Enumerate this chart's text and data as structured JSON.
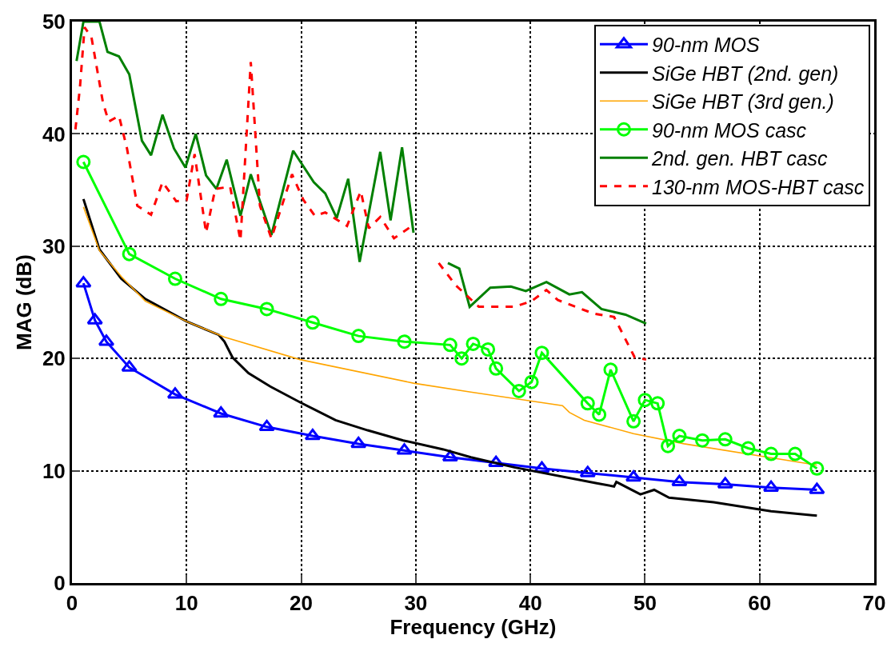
{
  "chart_data": {
    "type": "line",
    "xlabel": "Frequency (GHz)",
    "ylabel": "MAG (dB)",
    "xlim": [
      0,
      70
    ],
    "ylim": [
      0,
      50
    ],
    "xticks": [
      0,
      10,
      20,
      30,
      40,
      50,
      60,
      70
    ],
    "yticks": [
      0,
      10,
      20,
      30,
      40,
      50
    ],
    "grid": true,
    "legend": "top right",
    "series": [
      {
        "name": "90-nm MOS",
        "color": "#0000ff",
        "marker": "triangle",
        "line_style": "solid",
        "x": [
          1,
          2,
          3,
          5,
          9,
          13,
          17,
          21,
          25,
          29,
          33,
          37,
          41,
          45,
          49,
          53,
          57,
          61,
          65
        ],
        "values": [
          26.7,
          23.4,
          21.5,
          19.2,
          16.8,
          15.1,
          13.9,
          13.1,
          12.4,
          11.8,
          11.2,
          10.7,
          10.2,
          9.8,
          9.4,
          9.0,
          8.8,
          8.5,
          8.3
        ]
      },
      {
        "name": "SiGe HBT (2nd. gen)",
        "color": "#000000",
        "marker": "none",
        "line_style": "solid",
        "x": [
          1,
          2.4,
          4.3,
          6.4,
          10,
          12.8,
          13.3,
          14,
          15.4,
          17.3,
          19.9,
          23,
          25.8,
          28.9,
          32.4,
          34.8,
          38.6,
          45.7,
          47.3,
          47.5,
          49.6,
          50.8,
          52.1,
          56,
          61,
          65
        ],
        "values": [
          34.2,
          29.7,
          27.1,
          25.3,
          23.3,
          22.1,
          21.5,
          20.1,
          18.7,
          17.5,
          16.1,
          14.5,
          13.6,
          12.7,
          11.9,
          11.2,
          10.3,
          8.9,
          8.6,
          9.0,
          7.9,
          8.3,
          7.6,
          7.2,
          6.4,
          6.0
        ]
      },
      {
        "name": "SiGe HBT (3rd gen.)",
        "color": "#ffa500",
        "marker": "none",
        "line_style": "solid",
        "x": [
          1,
          2.4,
          4.3,
          6.4,
          10,
          13.3,
          19.9,
          29.8,
          34.8,
          40.1,
          42.8,
          43.4,
          44.7,
          49,
          53.4,
          65
        ],
        "values": [
          33.5,
          29.6,
          27.3,
          25.1,
          23.3,
          21.9,
          19.9,
          17.8,
          17.0,
          16.2,
          15.8,
          15.2,
          14.5,
          13.3,
          12.4,
          10.5
        ]
      },
      {
        "name": "90-nm MOS casc",
        "color": "#00ff00",
        "marker": "circle",
        "line_style": "solid",
        "x": [
          1,
          5,
          9,
          13,
          17,
          21,
          25,
          29,
          33,
          34,
          35,
          36.3,
          37,
          39,
          40.1,
          41,
          45,
          46,
          47,
          49,
          50,
          51.1,
          52,
          53,
          55,
          57,
          59,
          61,
          63.1,
          65
        ],
        "values": [
          37.5,
          29.3,
          27.1,
          25.3,
          24.4,
          23.2,
          22.0,
          21.5,
          21.2,
          20.0,
          21.3,
          20.8,
          19.1,
          17.1,
          17.9,
          20.5,
          16.0,
          15.0,
          19.0,
          14.4,
          16.3,
          16.0,
          12.2,
          13.1,
          12.7,
          12.8,
          12.0,
          11.5,
          11.5,
          10.2
        ]
      },
      {
        "name": "2nd. gen. HBT casc",
        "color": "#008000",
        "marker": "none",
        "line_style": "solid",
        "x": [
          0.4,
          1,
          2.4,
          3.1,
          4.1,
          5,
          6.1,
          6.9,
          7.9,
          8.9,
          9.9,
          10.8,
          11.7,
          12.6,
          13.5,
          14.7,
          15.6,
          17.4,
          19.3,
          21.1,
          22.1,
          23.1,
          24.1,
          25.1,
          26.9,
          27.8,
          28.8,
          29.8,
          31,
          32.8,
          33.8,
          34.7,
          36.5,
          38.3,
          39.6,
          41.4,
          43.4,
          44.5,
          46.2,
          48.3,
          50.1
        ],
        "values": [
          46.5,
          50,
          50,
          47.3,
          46.9,
          45.3,
          39.4,
          38.1,
          41.7,
          38.7,
          37,
          40,
          36.3,
          35.1,
          37.7,
          32.7,
          36.4,
          31,
          38.5,
          35.7,
          34.7,
          32.5,
          36,
          28.6,
          38.4,
          32.3,
          38.8,
          31.2,
          null,
          28.5,
          28,
          24.6,
          26.3,
          26.4,
          26,
          26.8,
          25.7,
          25.9,
          24.4,
          23.9,
          23.1
        ]
      },
      {
        "name": "130-nm MOS-HBT casc",
        "color": "#ff0000",
        "marker": "none",
        "line_style": "dashed",
        "x": [
          0.3,
          0.7,
          1.1,
          1.7,
          2.7,
          3.2,
          4.1,
          4.8,
          5.7,
          6.9,
          7.9,
          9.1,
          10,
          10.7,
          11.7,
          12.5,
          13.8,
          14.7,
          15.6,
          16.4,
          17.4,
          19.2,
          20.2,
          21.2,
          22.1,
          24,
          25.2,
          25.9,
          26.9,
          28.1,
          29.8,
          31,
          32,
          33.5,
          35.5,
          38.6,
          40.1,
          41.4,
          42.4,
          45.5,
          47.3,
          49.1,
          50.1
        ],
        "values": [
          40.4,
          44.2,
          49.5,
          48.6,
          42.8,
          41.1,
          41.6,
          38.7,
          33.6,
          32.8,
          35.7,
          34,
          34.1,
          38.2,
          31.2,
          35.1,
          35.3,
          30.5,
          46.4,
          33.6,
          30.7,
          36.4,
          34.1,
          32.7,
          33,
          31.8,
          34.9,
          31.6,
          32.6,
          30.7,
          31.9,
          null,
          28.5,
          26.5,
          24.6,
          24.6,
          25.1,
          26.1,
          25.2,
          24,
          23.7,
          20.1,
          19.9
        ]
      }
    ]
  }
}
